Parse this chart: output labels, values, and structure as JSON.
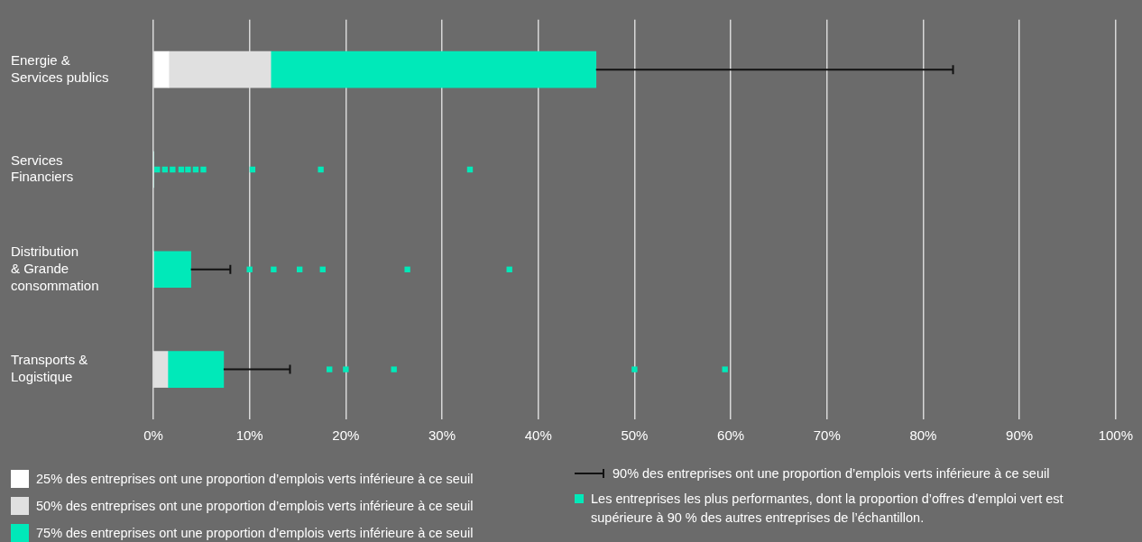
{
  "chart_data": {
    "type": "bar",
    "orientation": "horizontal",
    "stacked": true,
    "categories": [
      "Energie &\nServices publics",
      "Services\nFinanciers",
      "Distribution\n& Grande\nconsommation",
      "Transports &\nLogistique"
    ],
    "series": [
      {
        "name": "25% des entreprises ont une proportion d’emplois verts inférieure à ce seuil",
        "color": "#ffffff",
        "values": [
          1.6,
          0,
          0,
          0
        ]
      },
      {
        "name": "50% des entreprises ont une proportion d’emplois verts inférieure à ce seuil",
        "color": "#e0e0e0",
        "values": [
          10.6,
          0,
          0,
          1.5
        ]
      },
      {
        "name": "75% des entreprises ont une proportion d’emplois verts inférieure à ce seuil",
        "color": "#00e9b9",
        "values": [
          33.8,
          0,
          3.9,
          5.8
        ],
        "errors": [
          [
            46.0,
            83.1
          ],
          null,
          [
            3.9,
            8.0
          ],
          [
            7.3,
            14.2
          ]
        ]
      },
      {
        "type": "scatter",
        "name": "Les entreprises les plus performantes, dont la proportion d’offres d’emploi vert est supérieure à 90 % des autres entreprises de l’échantillon.",
        "color": "#00e9b9",
        "marker": "square",
        "x": [
          "Services\nFinanciers",
          "Services\nFinanciers",
          "Services\nFinanciers",
          "Services\nFinanciers",
          "Services\nFinanciers",
          "Services\nFinanciers",
          "Services\nFinanciers",
          "Services\nFinanciers",
          "Services\nFinanciers",
          "Services\nFinanciers",
          "Distribution\n& Grande\nconsommation",
          "Distribution\n& Grande\nconsommation",
          "Distribution\n& Grande\nconsommation",
          "Distribution\n& Grande\nconsommation",
          "Distribution\n& Grande\nconsommation",
          "Distribution\n& Grande\nconsommation",
          "Transports &\nLogistique",
          "Transports &\nLogistique",
          "Transports &\nLogistique",
          "Transports &\nLogistique",
          "Transports &\nLogistique"
        ],
        "values": [
          0.4,
          1.2,
          2.0,
          2.9,
          3.6,
          4.4,
          5.2,
          10.3,
          17.4,
          32.9,
          10.0,
          12.5,
          15.2,
          17.6,
          26.4,
          37.0,
          18.3,
          20.0,
          25.0,
          50.0,
          59.4
        ]
      }
    ],
    "xlim": [
      0,
      100
    ],
    "xticks": [
      {
        "value": 0,
        "label": "0%"
      },
      {
        "value": 10,
        "label": "10%"
      },
      {
        "value": 20,
        "label": "20%"
      },
      {
        "value": 30,
        "label": "30%"
      },
      {
        "value": 40,
        "label": "40%"
      },
      {
        "value": 50,
        "label": "50%"
      },
      {
        "value": 60,
        "label": "60%"
      },
      {
        "value": 70,
        "label": "70%"
      },
      {
        "value": 80,
        "label": "80%"
      },
      {
        "value": 90,
        "label": "90%"
      },
      {
        "value": 100,
        "label": "100%"
      }
    ],
    "grid": "x",
    "legend": "bottom",
    "annotations": [
      "90% des entreprises ont une proportion d’emplois verts inférieure à ce seuil"
    ]
  }
}
